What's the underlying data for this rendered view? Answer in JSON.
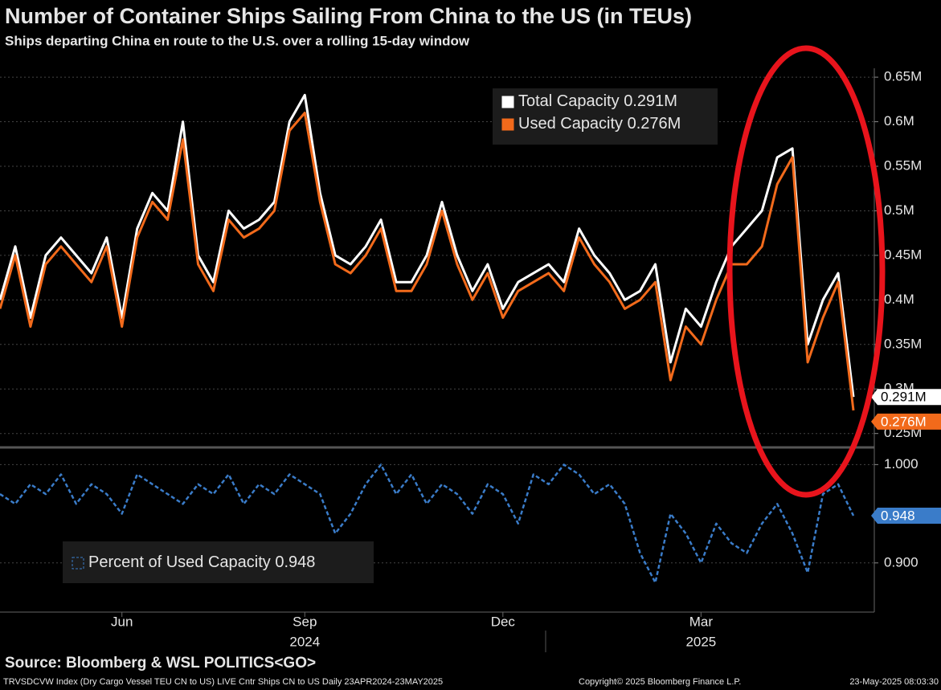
{
  "chart_data": [
    {
      "type": "line",
      "title": "Number of Container Ships Sailing From China to the US (in TEUs)",
      "subtitle": "Ships departing China en route to the U.S. over a rolling 15-day window",
      "categories": [
        null,
        null,
        null,
        null,
        null,
        null,
        null,
        null,
        "Jun",
        null,
        null,
        null,
        null,
        null,
        null,
        null,
        null,
        null,
        null,
        null,
        "Sep",
        null,
        null,
        null,
        null,
        null,
        null,
        null,
        null,
        null,
        null,
        null,
        null,
        "Dec",
        null,
        null,
        null,
        null,
        null,
        null,
        null,
        null,
        null,
        null,
        null,
        null,
        "Mar",
        null,
        null,
        null,
        null,
        null,
        null,
        null,
        null,
        null,
        null
      ],
      "year_labels": [
        "2024",
        "2025"
      ],
      "series": [
        {
          "name": "Total Capacity",
          "color": "#ffffff",
          "last_label": "0.291M",
          "values": [
            0.4,
            0.46,
            0.38,
            0.45,
            0.47,
            0.45,
            0.43,
            0.47,
            0.38,
            0.48,
            0.52,
            0.5,
            0.6,
            0.45,
            0.42,
            0.5,
            0.48,
            0.49,
            0.51,
            0.6,
            0.63,
            0.52,
            0.45,
            0.44,
            0.46,
            0.49,
            0.42,
            0.42,
            0.45,
            0.51,
            0.45,
            0.41,
            0.44,
            0.39,
            0.42,
            0.43,
            0.44,
            0.42,
            0.48,
            0.45,
            0.43,
            0.4,
            0.41,
            0.44,
            0.33,
            0.39,
            0.37,
            0.42,
            0.46,
            0.48,
            0.5,
            0.56,
            0.57,
            0.35,
            0.4,
            0.43,
            0.291
          ]
        },
        {
          "name": "Used Capacity",
          "color": "#f26a1b",
          "last_label": "0.276M",
          "values": [
            0.39,
            0.45,
            0.37,
            0.44,
            0.46,
            0.44,
            0.42,
            0.46,
            0.37,
            0.47,
            0.51,
            0.49,
            0.58,
            0.44,
            0.41,
            0.49,
            0.47,
            0.48,
            0.5,
            0.59,
            0.61,
            0.51,
            0.44,
            0.43,
            0.45,
            0.48,
            0.41,
            0.41,
            0.44,
            0.5,
            0.44,
            0.4,
            0.43,
            0.38,
            0.41,
            0.42,
            0.43,
            0.41,
            0.47,
            0.44,
            0.42,
            0.39,
            0.4,
            0.42,
            0.31,
            0.37,
            0.35,
            0.4,
            0.44,
            0.44,
            0.46,
            0.53,
            0.56,
            0.33,
            0.38,
            0.42,
            0.276
          ]
        }
      ],
      "ylim": [
        0.238,
        0.66
      ],
      "yticks": [
        {
          "value": 0.25,
          "label": "0.25M"
        },
        {
          "value": 0.3,
          "label": "0.3M"
        },
        {
          "value": 0.35,
          "label": "0.35M"
        },
        {
          "value": 0.4,
          "label": "0.4M"
        },
        {
          "value": 0.45,
          "label": "0.45M"
        },
        {
          "value": 0.5,
          "label": "0.5M"
        },
        {
          "value": 0.55,
          "label": "0.55M"
        },
        {
          "value": 0.6,
          "label": "0.6M"
        },
        {
          "value": 0.65,
          "label": "0.65M"
        }
      ],
      "grid": true,
      "legend": "top-right"
    },
    {
      "type": "line",
      "series": [
        {
          "name": "Percent of Used Capacity",
          "color": "#3a7cc9",
          "dashed": true,
          "values": [
            0.97,
            0.96,
            0.98,
            0.97,
            0.99,
            0.96,
            0.98,
            0.97,
            0.95,
            0.99,
            0.98,
            0.97,
            0.96,
            0.98,
            0.97,
            0.99,
            0.96,
            0.98,
            0.97,
            0.99,
            0.98,
            0.97,
            0.93,
            0.95,
            0.98,
            1.0,
            0.97,
            0.99,
            0.96,
            0.98,
            0.97,
            0.95,
            0.98,
            0.97,
            0.94,
            0.99,
            0.98,
            1.0,
            0.99,
            0.97,
            0.98,
            0.96,
            0.91,
            0.88,
            0.95,
            0.93,
            0.9,
            0.94,
            0.92,
            0.91,
            0.94,
            0.96,
            0.93,
            0.89,
            0.97,
            0.98,
            0.948
          ]
        }
      ],
      "ylim": [
        0.85,
        1.015
      ],
      "yticks": [
        {
          "value": 0.9,
          "label": "0.900"
        },
        {
          "value": 1,
          "label": "1.000"
        }
      ],
      "grid": true,
      "legend": "bottom-left"
    }
  ],
  "source": "Source: Bloomberg & WSL POLITICS<GO>",
  "footer": {
    "left": "TRVSDCVW Index (Dry Cargo Vessel TEU CN to US) LIVE Cntr Ships CN to US  Daily 23APR2024-23MAY2025",
    "center": "Copyright© 2025 Bloomberg Finance L.P.",
    "right": "23-May-2025 08:03:30"
  }
}
